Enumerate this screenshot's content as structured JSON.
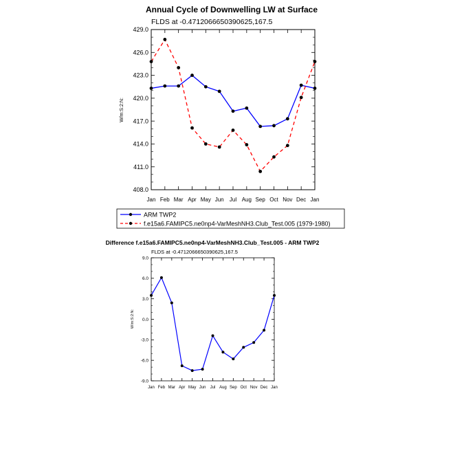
{
  "chart_data": [
    {
      "type": "line",
      "title": "Annual Cycle of Downwelling LW at Surface",
      "subtitle": "FLDS at -0.4712066650390625,167.5",
      "ylabel": "W/m:S:2:N:",
      "xlabel": "",
      "categories": [
        "Jan",
        "Feb",
        "Mar",
        "Apr",
        "May",
        "Jun",
        "Jul",
        "Aug",
        "Sep",
        "Oct",
        "Nov",
        "Dec",
        "Jan"
      ],
      "ylim": [
        408.0,
        429.0
      ],
      "yticks": [
        "408.0",
        "411.0",
        "414.0",
        "417.0",
        "420.0",
        "423.0",
        "426.0",
        "429.0"
      ],
      "legend_position": "bottom",
      "series": [
        {
          "name": "ARM TWP2",
          "color": "#0000ff",
          "dash": "solid",
          "values": [
            421.3,
            421.6,
            421.6,
            423.0,
            421.5,
            420.9,
            418.3,
            418.7,
            416.3,
            416.4,
            417.3,
            421.7,
            421.3
          ]
        },
        {
          "name": "f.e15a6.FAMIPC5.ne0np4-VarMeshNH3.Club_Test.005 (1979-1980)",
          "color": "#ff0000",
          "dash": "dashed",
          "values": [
            424.8,
            427.7,
            424.0,
            416.1,
            414.0,
            413.6,
            415.8,
            413.9,
            410.4,
            412.3,
            413.8,
            420.1,
            424.8
          ]
        }
      ]
    },
    {
      "type": "line",
      "title": "Difference f.e15a6.FAMIPC5.ne0np4-VarMeshNH3.Club_Test.005 - ARM TWP2",
      "subtitle": "FLDS at -0.4712066650390625,167.5",
      "ylabel": "W/m:S:2:N:",
      "xlabel": "",
      "categories": [
        "Jan",
        "Feb",
        "Mar",
        "Apr",
        "May",
        "Jun",
        "Jul",
        "Aug",
        "Sep",
        "Oct",
        "Nov",
        "Dec",
        "Jan"
      ],
      "ylim": [
        -9.0,
        9.0
      ],
      "yticks": [
        "-9.0",
        "-6.0",
        "-3.0",
        "0.0",
        "3.0",
        "6.0",
        "9.0"
      ],
      "series": [
        {
          "name": "Difference",
          "color": "#0000ff",
          "dash": "solid",
          "values": [
            3.5,
            6.1,
            2.4,
            -6.8,
            -7.5,
            -7.3,
            -2.4,
            -4.8,
            -5.8,
            -4.1,
            -3.4,
            -1.6,
            3.5
          ]
        }
      ]
    }
  ]
}
